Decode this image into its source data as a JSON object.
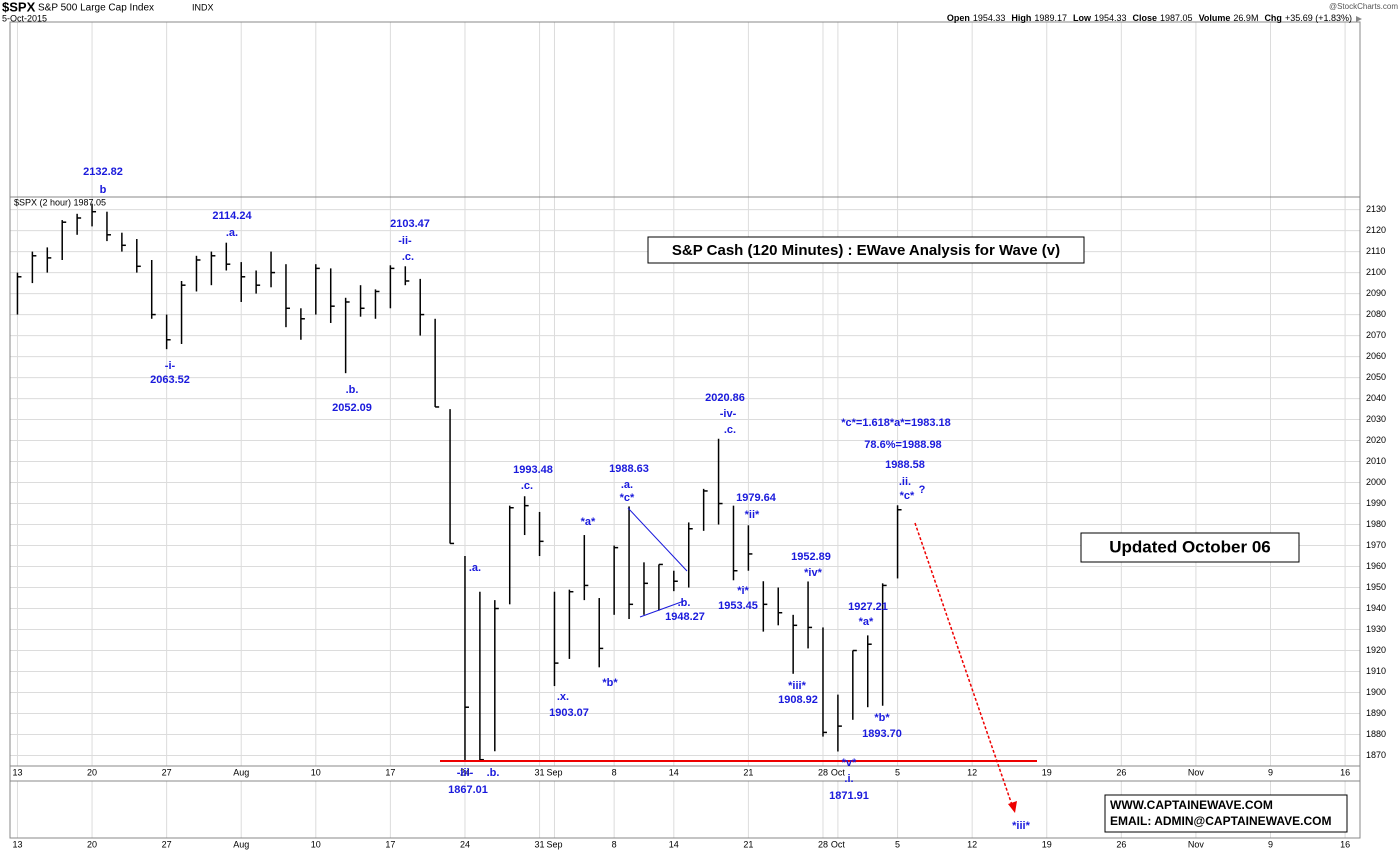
{
  "header": {
    "symbol": "$SPX",
    "name": "S&P 500 Large Cap Index",
    "exchange": "INDX",
    "date": "5-Oct-2015",
    "quote": [
      {
        "label": "Open",
        "value": "1954.33"
      },
      {
        "label": "High",
        "value": "1989.17"
      },
      {
        "label": "Low",
        "value": "1954.33"
      },
      {
        "label": "Close",
        "value": "1987.05"
      },
      {
        "label": "Volume",
        "value": "26.9M"
      },
      {
        "label": "Chg",
        "value": "+35.69 (+1.83%)"
      }
    ],
    "source": "@StockCharts.com"
  },
  "chart_data": {
    "type": "hlc",
    "legend": "$SPX (2 hour) 1987.05",
    "color": "#000000",
    "annotation_color": "#1a1adc",
    "grid": true,
    "x": [
      0,
      1,
      2,
      3,
      4,
      5,
      6,
      7,
      8,
      9,
      10,
      11,
      12,
      13,
      14,
      15,
      16,
      17,
      18,
      19,
      20,
      21,
      22,
      23,
      24,
      25,
      26,
      27,
      28,
      29,
      30,
      31,
      32,
      33,
      34,
      35,
      36,
      37,
      38,
      39,
      40,
      41,
      42,
      43,
      44,
      45,
      46,
      47,
      48,
      49,
      50,
      51,
      52,
      53,
      54,
      55,
      56,
      57,
      58,
      59
    ],
    "high": [
      2100,
      2110,
      2112,
      2125,
      2128,
      2132.82,
      2129,
      2119,
      2116,
      2106,
      2080,
      2096,
      2108,
      2110,
      2114.24,
      2105,
      2101,
      2110,
      2104,
      2083,
      2104,
      2102,
      2088,
      2094,
      2092,
      2103.47,
      2103,
      2097,
      2078,
      2035,
      1965,
      1948,
      1944,
      1989,
      1993.48,
      1986,
      1948,
      1949,
      1975,
      1945,
      1970,
      1988.63,
      1962,
      1961,
      1958,
      1981,
      1997,
      2020.86,
      1989,
      1979.64,
      1953,
      1950,
      1937,
      1952.89,
      1931,
      1899,
      1920,
      1927.21,
      1952,
      1989.17
    ],
    "low": [
      2080,
      2095,
      2100,
      2106,
      2118,
      2122,
      2115,
      2110,
      2100,
      2078,
      2063.52,
      2066,
      2091,
      2094,
      2101,
      2086,
      2090,
      2093,
      2074,
      2068,
      2080,
      2076,
      2052.09,
      2079,
      2078,
      2083,
      2094,
      2070,
      2036,
      1971,
      1867.01,
      1867,
      1872,
      1942,
      1975,
      1965,
      1903.07,
      1916,
      1944,
      1912,
      1937,
      1935,
      1937,
      1939,
      1948.27,
      1950,
      1977,
      1980,
      1953.45,
      1958,
      1929,
      1932,
      1908.92,
      1921,
      1879,
      1871.91,
      1887,
      1893,
      1893.7,
      1954.33
    ],
    "close": [
      2098,
      2108,
      2107,
      2124,
      2126,
      2129,
      2118,
      2113,
      2103,
      2080,
      2068,
      2094,
      2106,
      2108,
      2104,
      2098,
      2094,
      2100,
      2083,
      2078,
      2102,
      2084,
      2086,
      2083,
      2091,
      2102,
      2096,
      2080,
      2036,
      1971,
      1893,
      1868,
      1940,
      1988,
      1989,
      1972,
      1914,
      1948,
      1951,
      1921,
      1969,
      1942,
      1952,
      1961,
      1953,
      1978,
      1996,
      1990,
      1958,
      1966,
      1942,
      1938,
      1932,
      1931,
      1881,
      1884,
      1920,
      1923,
      1951,
      1987.05
    ],
    "xlim": [
      -0.5,
      90
    ],
    "ylim": [
      1865,
      2136
    ],
    "yticks": [
      1870,
      1880,
      1890,
      1900,
      1910,
      1920,
      1930,
      1940,
      1950,
      1960,
      1970,
      1980,
      1990,
      2000,
      2010,
      2020,
      2030,
      2040,
      2050,
      2060,
      2070,
      2080,
      2090,
      2100,
      2110,
      2120,
      2130
    ],
    "xticks": [
      {
        "value": 0,
        "label": "13"
      },
      {
        "value": 5,
        "label": "20"
      },
      {
        "value": 10,
        "label": "27"
      },
      {
        "value": 15,
        "label": "Aug"
      },
      {
        "value": 20,
        "label": "10"
      },
      {
        "value": 25,
        "label": "17"
      },
      {
        "value": 30,
        "label": "24"
      },
      {
        "value": 35,
        "label": "31"
      },
      {
        "value": 36,
        "label": "Sep"
      },
      {
        "value": 40,
        "label": "8"
      },
      {
        "value": 44,
        "label": "14"
      },
      {
        "value": 49,
        "label": "21"
      },
      {
        "value": 54,
        "label": "28"
      },
      {
        "value": 55,
        "label": "Oct"
      },
      {
        "value": 59,
        "label": "5"
      },
      {
        "value": 64,
        "label": "12"
      },
      {
        "value": 69,
        "label": "19"
      },
      {
        "value": 74,
        "label": "26"
      },
      {
        "value": 79,
        "label": "Nov"
      },
      {
        "value": 84,
        "label": "9"
      },
      {
        "value": 89,
        "label": "16"
      }
    ],
    "annotations": [
      "2132.82",
      "b",
      "2114.24",
      ".a.",
      "-i-",
      "2063.52",
      ".b.",
      "2052.09",
      "2103.47",
      "-ii-",
      ".c.",
      ".a.",
      "-iii-",
      ".b.",
      "1867.01",
      "1993.48",
      ".c.",
      "*a*",
      ".x.",
      "1903.07",
      "*b*",
      "1988.63",
      ".a.",
      "*c*",
      ".b.",
      "1948.27",
      "2020.86",
      "-iv-",
      ".c.",
      "1979.64",
      "*ii*",
      "*i*",
      "1953.45",
      "1952.89",
      "*iv*",
      "*iii*",
      "1908.92",
      "1927.21",
      "*a*",
      "*b*",
      "1893.70",
      "*c*=1.618*a*=1983.18",
      "78.6%=1988.98",
      "1988.58",
      ".ii.",
      "*c*",
      "?",
      "*v*",
      ".i.",
      "1871.91",
      "*iii*"
    ]
  },
  "boxes": {
    "title": "S&P Cash (120 Minutes) : EWave Analysis for Wave (v)",
    "updated": "Updated October 06",
    "website": "WWW.CAPTAINEWAVE.COM",
    "email": "EMAIL: ADMIN@CAPTAINEWAVE.COM"
  }
}
